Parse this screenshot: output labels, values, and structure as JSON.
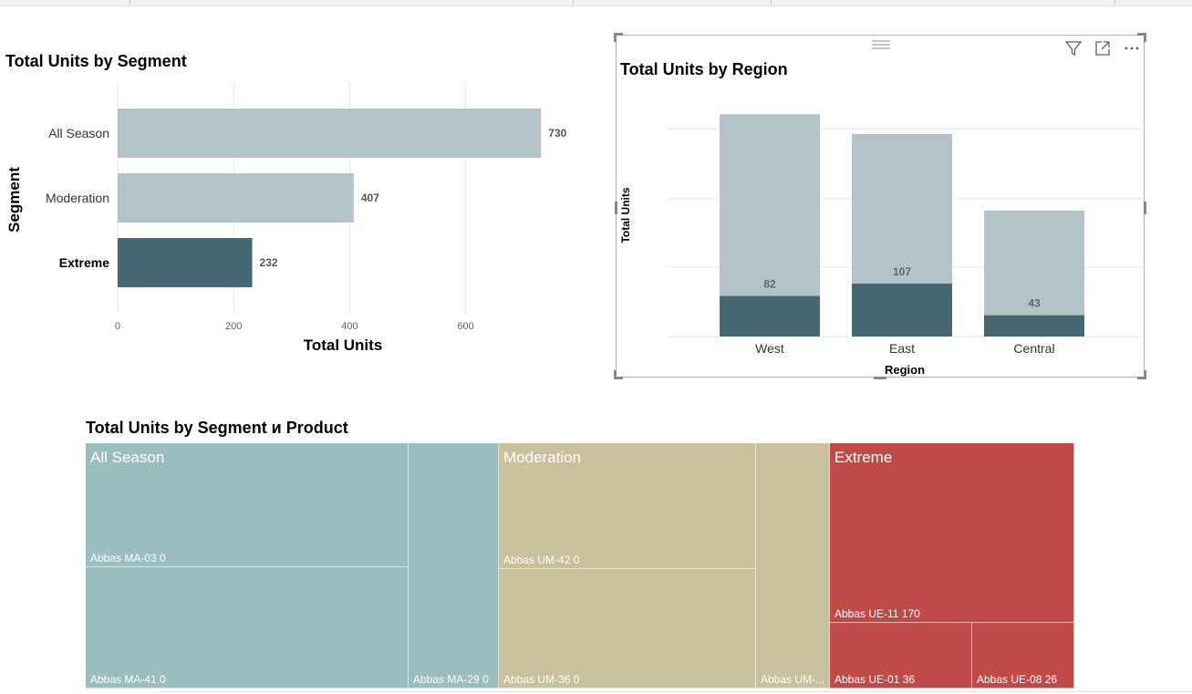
{
  "colors": {
    "light_bar": "#b3c3c8",
    "dark_bar": "#456872",
    "all_season": "#9abdbd",
    "moderation": "#c9c19c",
    "extreme": "#c04a48",
    "grid": "#e6e6e6"
  },
  "chart_data": [
    {
      "type": "bar",
      "orientation": "horizontal",
      "title": "Total Units by Segment",
      "xlabel": "Total Units",
      "ylabel": "Segment",
      "categories": [
        "All Season",
        "Moderation",
        "Extreme"
      ],
      "values": [
        730,
        407,
        232
      ],
      "highlighted": [
        "Extreme"
      ],
      "xticks": [
        "0",
        "200",
        "400",
        "600"
      ],
      "xlim": [
        0,
        800
      ],
      "grid": true
    },
    {
      "type": "bar",
      "orientation": "vertical",
      "title": "Total Units by Region",
      "xlabel": "Region",
      "ylabel": "Total Units",
      "categories": [
        "West",
        "East",
        "Central"
      ],
      "series": [
        {
          "values": [
            450,
            410,
            255
          ]
        },
        {
          "values": [
            82,
            107,
            43
          ]
        }
      ],
      "highlight_labels": [
        "82",
        "107",
        "43"
      ],
      "ylim": [
        0,
        480
      ],
      "grid": true
    },
    {
      "type": "treemap",
      "title": "Total Units by Segment и Product",
      "groups": [
        {
          "name": "All Season",
          "leaves": [
            {
              "label": "Abbas MA-03 0"
            },
            {
              "label": "Abbas MA-41 0"
            },
            {
              "label": "Abbas MA-29 0"
            }
          ]
        },
        {
          "name": "Moderation",
          "leaves": [
            {
              "label": "Abbas UM-42 0"
            },
            {
              "label": "Abbas UM-36 0"
            },
            {
              "label": "Abbas UM-..."
            }
          ]
        },
        {
          "name": "Extreme",
          "leaves": [
            {
              "label": "Abbas UE-11 170"
            },
            {
              "label": "Abbas UE-01 36"
            },
            {
              "label": "Abbas UE-08 26"
            }
          ]
        }
      ]
    }
  ],
  "header_icons": [
    "filter-icon",
    "focus-mode-icon",
    "more-options-icon"
  ]
}
